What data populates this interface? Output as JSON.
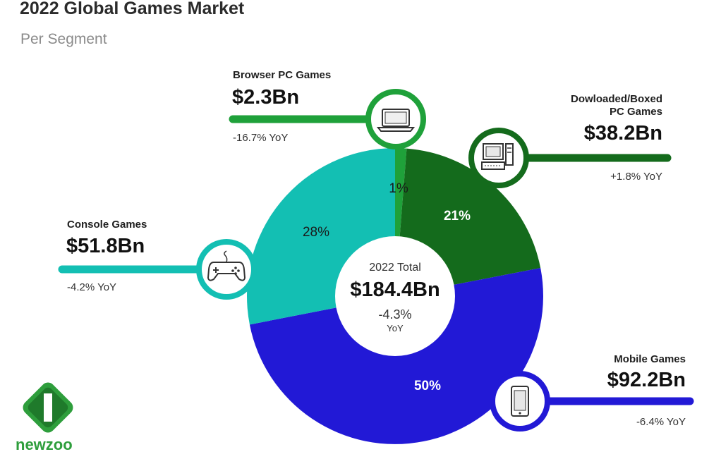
{
  "header": {
    "title": "2022 Global Games Market",
    "subtitle": "Per Segment"
  },
  "center": {
    "label": "2022 Total",
    "value": "$184.4Bn",
    "yoy_value": "-4.3%",
    "yoy_unit": "YoY"
  },
  "segments": {
    "browser": {
      "label": "Browser PC Games",
      "value": "$2.3Bn",
      "yoy": "-16.7% YoY",
      "pct_label": "1%",
      "color": "#1fa13a",
      "icon": "laptop-icon"
    },
    "downloaded": {
      "label_line1": "Dowloaded/Boxed",
      "label_line2": "PC Games",
      "value": "$38.2Bn",
      "yoy": "+1.8% YoY",
      "pct_label": "21%",
      "color": "#146b1c",
      "icon": "desktop-computer-icon"
    },
    "mobile": {
      "label": "Mobile Games",
      "value": "$92.2Bn",
      "yoy": "-6.4% YoY",
      "pct_label": "50%",
      "color": "#2219d6",
      "icon": "smartphone-icon"
    },
    "console": {
      "label": "Console Games",
      "value": "$51.8Bn",
      "yoy": "-4.2% YoY",
      "pct_label": "28%",
      "color": "#13bfb3",
      "icon": "gamepad-icon"
    }
  },
  "chart_data": {
    "type": "pie",
    "title": "2022 Global Games Market",
    "subtitle": "Per Segment",
    "categories": [
      "Browser PC Games",
      "Dowloaded/Boxed PC Games",
      "Mobile Games",
      "Console Games"
    ],
    "values": [
      2.3,
      38.2,
      92.2,
      51.8
    ],
    "percent_labels": [
      "1%",
      "21%",
      "50%",
      "28%"
    ],
    "total": 184.4,
    "colors": [
      "#1fa13a",
      "#146b1c",
      "#2219d6",
      "#13bfb3"
    ]
  },
  "logo": {
    "text": "newzoo"
  }
}
